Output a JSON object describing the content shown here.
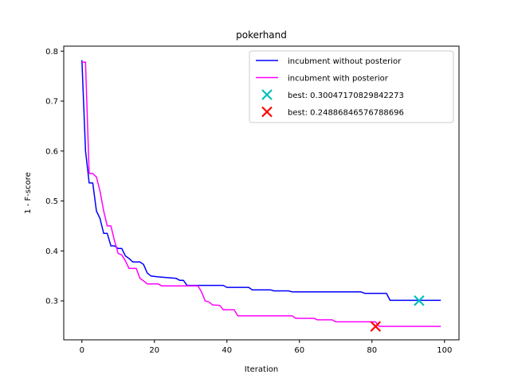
{
  "chart_data": {
    "type": "line",
    "title": "pokerhand",
    "xlabel": "Iteration",
    "ylabel": "1 - F-score",
    "xlim": [
      -5,
      104
    ],
    "ylim": [
      0.222,
      0.81
    ],
    "xticks": [
      0,
      20,
      40,
      60,
      80,
      100
    ],
    "yticks": [
      0.3,
      0.4,
      0.5,
      0.6,
      0.7,
      0.8
    ],
    "xtick_labels": [
      "0",
      "20",
      "40",
      "60",
      "80",
      "100"
    ],
    "ytick_labels": [
      "0.3",
      "0.4",
      "0.5",
      "0.6",
      "0.7",
      "0.8"
    ],
    "grid": false,
    "legend_position": "top-right",
    "series": [
      {
        "name": "incubment without posterior",
        "kind": "step-line",
        "color": "#0000ff",
        "points": [
          [
            0,
            0.782
          ],
          [
            1,
            0.601
          ],
          [
            2,
            0.536
          ],
          [
            3,
            0.536
          ],
          [
            4,
            0.48
          ],
          [
            5,
            0.465
          ],
          [
            6,
            0.435
          ],
          [
            7,
            0.435
          ],
          [
            8,
            0.41
          ],
          [
            9,
            0.41
          ],
          [
            10,
            0.405
          ],
          [
            11,
            0.405
          ],
          [
            12,
            0.39
          ],
          [
            13,
            0.385
          ],
          [
            14,
            0.378
          ],
          [
            16,
            0.378
          ],
          [
            17,
            0.373
          ],
          [
            18,
            0.356
          ],
          [
            19,
            0.35
          ],
          [
            21,
            0.348
          ],
          [
            26,
            0.345
          ],
          [
            27,
            0.341
          ],
          [
            28,
            0.341
          ],
          [
            29,
            0.331
          ],
          [
            32,
            0.331
          ],
          [
            39,
            0.331
          ],
          [
            40,
            0.327
          ],
          [
            46,
            0.327
          ],
          [
            47,
            0.322
          ],
          [
            52,
            0.322
          ],
          [
            53,
            0.32
          ],
          [
            57,
            0.32
          ],
          [
            58,
            0.318
          ],
          [
            77,
            0.318
          ],
          [
            78,
            0.315
          ],
          [
            84,
            0.315
          ],
          [
            85,
            0.301
          ],
          [
            99,
            0.301
          ]
        ]
      },
      {
        "name": "incubment with posterior",
        "kind": "step-line",
        "color": "#ff00ff",
        "points": [
          [
            0,
            0.778
          ],
          [
            1,
            0.778
          ],
          [
            2,
            0.555
          ],
          [
            3,
            0.555
          ],
          [
            4,
            0.548
          ],
          [
            5,
            0.52
          ],
          [
            6,
            0.48
          ],
          [
            7,
            0.45
          ],
          [
            8,
            0.45
          ],
          [
            9,
            0.42
          ],
          [
            10,
            0.395
          ],
          [
            11,
            0.392
          ],
          [
            12,
            0.38
          ],
          [
            13,
            0.365
          ],
          [
            15,
            0.365
          ],
          [
            16,
            0.345
          ],
          [
            17,
            0.34
          ],
          [
            18,
            0.334
          ],
          [
            21,
            0.334
          ],
          [
            22,
            0.33
          ],
          [
            32,
            0.33
          ],
          [
            33,
            0.318
          ],
          [
            34,
            0.3
          ],
          [
            35,
            0.298
          ],
          [
            36,
            0.292
          ],
          [
            38,
            0.291
          ],
          [
            39,
            0.282
          ],
          [
            42,
            0.282
          ],
          [
            43,
            0.27
          ],
          [
            58,
            0.27
          ],
          [
            59,
            0.265
          ],
          [
            64,
            0.265
          ],
          [
            65,
            0.262
          ],
          [
            69,
            0.262
          ],
          [
            70,
            0.258
          ],
          [
            81,
            0.258
          ],
          [
            82,
            0.249
          ],
          [
            99,
            0.249
          ]
        ]
      }
    ],
    "markers": [
      {
        "name": "best: 0.30047170829842273",
        "x": 93,
        "y": 0.30047170829842273,
        "color": "#00bfbf",
        "marker": "x"
      },
      {
        "name": "best: 0.24886846576788696",
        "x": 81,
        "y": 0.24886846576788696,
        "color": "#ff0000",
        "marker": "x"
      }
    ]
  }
}
